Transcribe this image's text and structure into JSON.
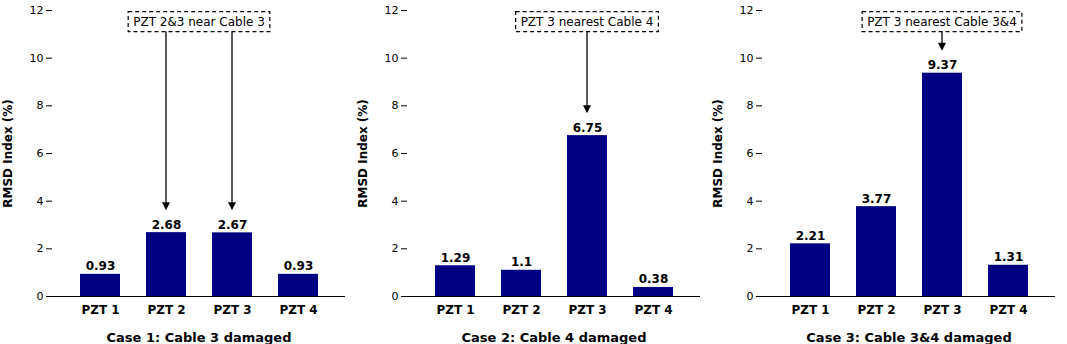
{
  "chart_data": [
    {
      "type": "bar",
      "xlabel": "Case 1: Cable 3 damaged",
      "ylabel": "RMSD Index (%)",
      "categories": [
        "PZT 1",
        "PZT 2",
        "PZT 3",
        "PZT 4"
      ],
      "values": [
        0.93,
        2.68,
        2.67,
        0.93
      ],
      "color": "#000080",
      "ylim": [
        0,
        12
      ],
      "yticks": [
        0,
        2,
        4,
        6,
        8,
        10,
        12
      ],
      "grid": false,
      "data_labels": true,
      "annotations": [
        {
          "text": "PZT 2&3 near Cable 3",
          "targets": [
            "PZT 2",
            "PZT 3"
          ]
        }
      ]
    },
    {
      "type": "bar",
      "xlabel": "Case 2: Cable 4 damaged",
      "ylabel": "RMSD Index (%)",
      "categories": [
        "PZT 1",
        "PZT 2",
        "PZT 3",
        "PZT 4"
      ],
      "values": [
        1.29,
        1.1,
        6.75,
        0.38
      ],
      "color": "#000080",
      "ylim": [
        0,
        12
      ],
      "yticks": [
        0,
        2,
        4,
        6,
        8,
        10,
        12
      ],
      "grid": false,
      "data_labels": true,
      "annotations": [
        {
          "text": "PZT 3 nearest Cable 4",
          "targets": [
            "PZT 3"
          ]
        }
      ]
    },
    {
      "type": "bar",
      "xlabel": "Case 3: Cable 3&4 damaged",
      "ylabel": "RMSD Index (%)",
      "categories": [
        "PZT 1",
        "PZT 2",
        "PZT 3",
        "PZT 4"
      ],
      "values": [
        2.21,
        3.77,
        9.37,
        1.31
      ],
      "color": "#000080",
      "ylim": [
        0,
        12
      ],
      "yticks": [
        0,
        2,
        4,
        6,
        8,
        10,
        12
      ],
      "grid": false,
      "data_labels": true,
      "annotations": [
        {
          "text": "PZT 3 nearest Cable 3&4",
          "targets": [
            "PZT 3"
          ]
        }
      ]
    }
  ]
}
